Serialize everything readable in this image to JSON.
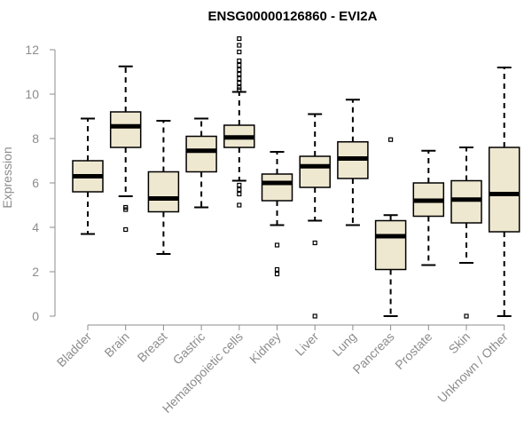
{
  "chart_data": {
    "type": "boxplot",
    "title": "ENSG00000126860 - EVI2A",
    "xlabel": "",
    "ylabel": "Expression",
    "ylim": [
      0,
      12
    ],
    "yticks": [
      0,
      2,
      4,
      6,
      8,
      10,
      12
    ],
    "grid": false,
    "colors": {
      "box_fill": "#efe8d0",
      "box_stroke": "#000000",
      "axis": "#8c8c8c"
    },
    "categories": [
      "Bladder",
      "Brain",
      "Breast",
      "Gastric",
      "Hematopoietic cells",
      "Kidney",
      "Liver",
      "Lung",
      "Pancreas",
      "Prostate",
      "Skin",
      "Unknown / Other"
    ],
    "boxes": [
      {
        "label": "Bladder",
        "whisker_low": 3.7,
        "q1": 5.6,
        "median": 6.3,
        "q3": 7.0,
        "whisker_high": 8.9,
        "outliers": []
      },
      {
        "label": "Brain",
        "whisker_low": 5.4,
        "q1": 7.6,
        "median": 8.55,
        "q3": 9.2,
        "whisker_high": 11.25,
        "outliers": [
          4.9,
          4.8,
          3.9
        ]
      },
      {
        "label": "Breast",
        "whisker_low": 2.8,
        "q1": 4.7,
        "median": 5.3,
        "q3": 6.5,
        "whisker_high": 8.8,
        "outliers": []
      },
      {
        "label": "Gastric",
        "whisker_low": 4.9,
        "q1": 6.5,
        "median": 7.45,
        "q3": 8.1,
        "whisker_high": 8.9,
        "outliers": []
      },
      {
        "label": "Hematopoietic cells",
        "whisker_low": 6.1,
        "q1": 7.6,
        "median": 8.05,
        "q3": 8.6,
        "whisker_high": 10.1,
        "outliers": [
          12.5,
          12.2,
          11.9,
          11.5,
          11.3,
          11.1,
          10.9,
          10.7,
          10.5,
          10.3,
          10.2,
          5.9,
          5.7,
          5.5,
          5.0
        ]
      },
      {
        "label": "Kidney",
        "whisker_low": 4.1,
        "q1": 5.2,
        "median": 6.0,
        "q3": 6.4,
        "whisker_high": 7.4,
        "outliers": [
          3.2,
          2.1,
          1.9
        ]
      },
      {
        "label": "Liver",
        "whisker_low": 4.3,
        "q1": 5.8,
        "median": 6.75,
        "q3": 7.2,
        "whisker_high": 9.1,
        "outliers": [
          3.3,
          0.0
        ]
      },
      {
        "label": "Lung",
        "whisker_low": 4.1,
        "q1": 6.2,
        "median": 7.1,
        "q3": 7.85,
        "whisker_high": 9.75,
        "outliers": []
      },
      {
        "label": "Pancreas",
        "whisker_low": 0.0,
        "q1": 2.1,
        "median": 3.6,
        "q3": 4.3,
        "whisker_high": 4.55,
        "outliers": [
          7.95
        ]
      },
      {
        "label": "Prostate",
        "whisker_low": 2.3,
        "q1": 4.5,
        "median": 5.2,
        "q3": 6.0,
        "whisker_high": 7.45,
        "outliers": []
      },
      {
        "label": "Skin",
        "whisker_low": 2.4,
        "q1": 4.2,
        "median": 5.25,
        "q3": 6.1,
        "whisker_high": 7.6,
        "outliers": [
          0.0
        ]
      },
      {
        "label": "Unknown / Other",
        "whisker_low": 0.0,
        "q1": 3.8,
        "median": 5.5,
        "q3": 7.6,
        "whisker_high": 11.2,
        "outliers": []
      }
    ]
  }
}
